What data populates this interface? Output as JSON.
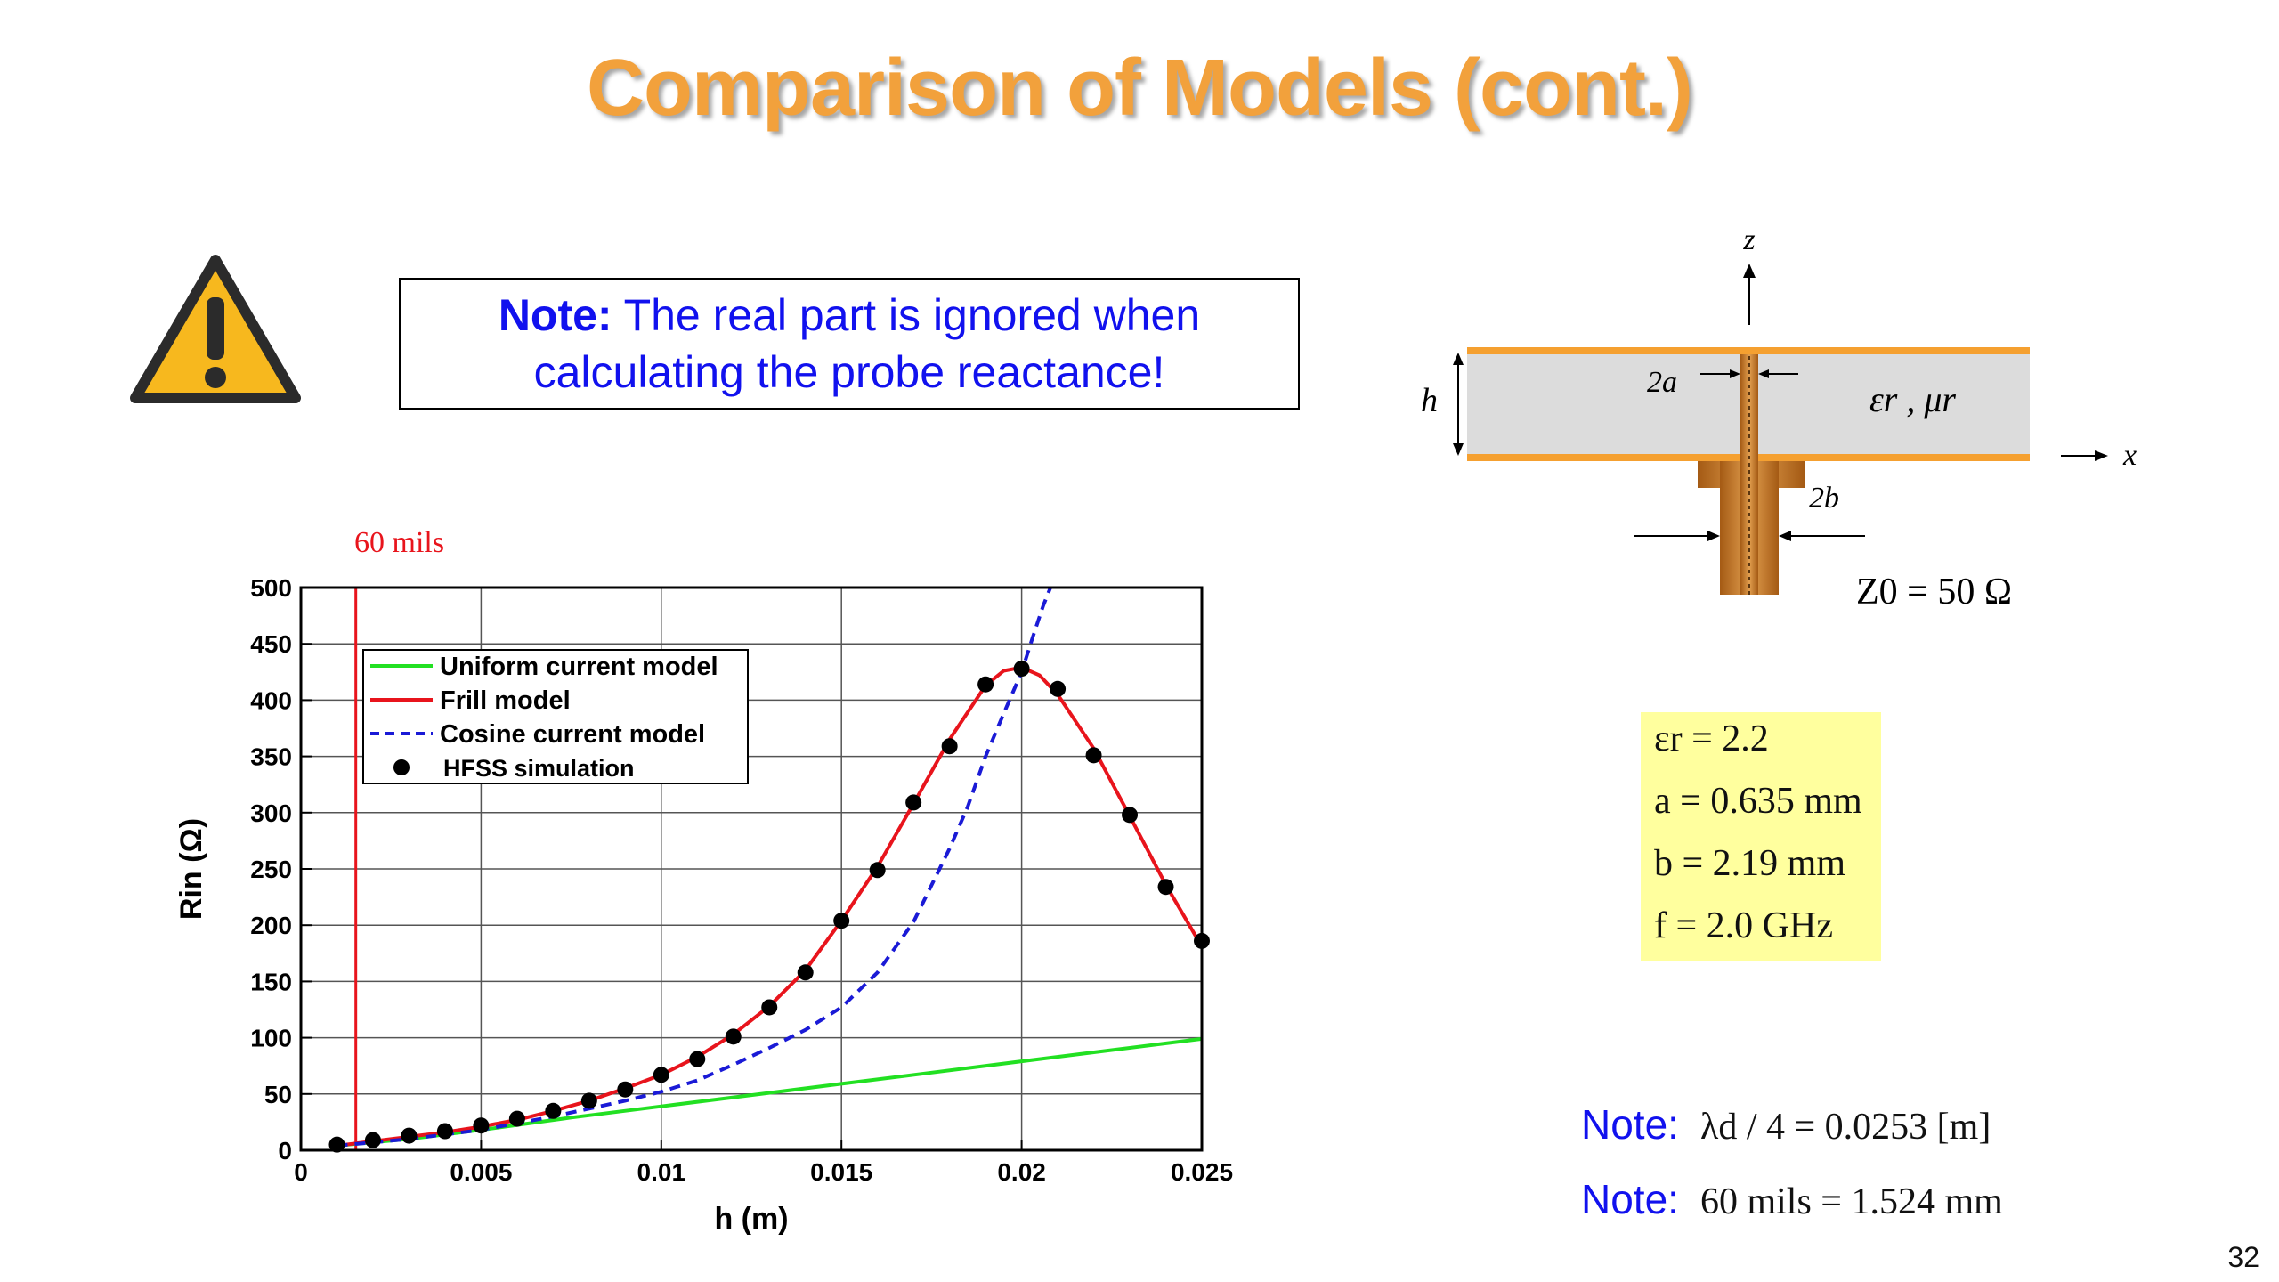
{
  "slide": {
    "title": "Comparison of Models (cont.)",
    "page_number": "32"
  },
  "note": {
    "bold": "Note:",
    "line1": " The real part is ignored when",
    "line2": "calculating the probe reactance!"
  },
  "warning_icon": "warning-triangle",
  "colors": {
    "title": "#f2a13c",
    "note_text": "#1111ee",
    "uniform": "#22e022",
    "frill": "#e8141c",
    "cosine": "#1a1ad6",
    "hfss": "#000000",
    "params_bg": "#ffff9e",
    "conductor": "#f5a030",
    "substrate": "#dcdcdc",
    "probe": "#c87a2a"
  },
  "diagram": {
    "z_label": "z",
    "x_label": "x",
    "h_label": "h",
    "a_label": "2a",
    "b_label": "2b",
    "material": "εr , μr",
    "z0": "Z0 = 50 Ω"
  },
  "params": [
    "εr = 2.2",
    "a = 0.635 mm",
    "b = 2.19  mm",
    "f = 2.0 GHz"
  ],
  "bottom_notes": [
    {
      "label": "Note:",
      "text": "λd / 4 = 0.0253 [m]"
    },
    {
      "label": "Note:",
      "text": "60 mils = 1.524 mm"
    }
  ],
  "chart_data": {
    "type": "line",
    "title": "",
    "xlabel": "h (m)",
    "ylabel": "Rin (Ω)",
    "xlim": [
      0,
      0.025
    ],
    "ylim": [
      0,
      500
    ],
    "x_ticks": [
      0,
      0.005,
      0.01,
      0.015,
      0.02,
      0.025
    ],
    "x_tick_labels": [
      "0",
      "0.005",
      "0.01",
      "0.015",
      "0.02",
      "0.025"
    ],
    "y_ticks": [
      0,
      50,
      100,
      150,
      200,
      250,
      300,
      350,
      400,
      450,
      500
    ],
    "y_tick_labels": [
      "0",
      "50",
      "100",
      "150",
      "200",
      "250",
      "300",
      "350",
      "400",
      "450",
      "500"
    ],
    "grid": true,
    "legend_position": "top-left",
    "marker_line": {
      "x": 0.001524,
      "label": "60 mils"
    },
    "series": [
      {
        "name": "Uniform current model",
        "style": "solid",
        "x": [
          0.001,
          0.003,
          0.005,
          0.0075,
          0.01,
          0.0125,
          0.015,
          0.0175,
          0.02,
          0.0225,
          0.025
        ],
        "y": [
          4,
          10,
          18,
          29,
          39,
          49,
          59,
          69,
          79,
          89,
          99
        ]
      },
      {
        "name": "Frill model",
        "style": "solid",
        "x": [
          0.001,
          0.002,
          0.003,
          0.004,
          0.005,
          0.006,
          0.007,
          0.008,
          0.009,
          0.01,
          0.011,
          0.012,
          0.013,
          0.014,
          0.015,
          0.016,
          0.017,
          0.018,
          0.019,
          0.0195,
          0.02,
          0.0205,
          0.021,
          0.022,
          0.023,
          0.024,
          0.025
        ],
        "y": [
          4,
          8,
          12,
          16,
          21,
          27,
          35,
          44,
          55,
          67,
          83,
          103,
          128,
          160,
          204,
          252,
          308,
          365,
          413,
          426,
          429,
          422,
          405,
          357,
          297,
          236,
          181
        ]
      },
      {
        "name": "Cosine current model",
        "style": "dashed",
        "x": [
          0.001,
          0.003,
          0.005,
          0.007,
          0.009,
          0.01,
          0.011,
          0.012,
          0.013,
          0.014,
          0.015,
          0.016,
          0.017,
          0.018,
          0.0185,
          0.019,
          0.0195,
          0.02,
          0.0203,
          0.0206,
          0.0208
        ],
        "y": [
          4,
          10,
          18,
          30,
          44,
          52,
          62,
          76,
          91,
          107,
          127,
          158,
          203,
          268,
          305,
          350,
          388,
          425,
          455,
          484,
          500
        ]
      },
      {
        "name": "HFSS simulation",
        "style": "markers",
        "x": [
          0.001,
          0.002,
          0.003,
          0.004,
          0.005,
          0.006,
          0.007,
          0.008,
          0.009,
          0.01,
          0.011,
          0.012,
          0.013,
          0.014,
          0.015,
          0.016,
          0.017,
          0.018,
          0.019,
          0.02,
          0.021,
          0.022,
          0.023,
          0.024,
          0.025
        ],
        "y": [
          5,
          9,
          13,
          17,
          22,
          28,
          35,
          44,
          54,
          67,
          81,
          101,
          127,
          158,
          204,
          249,
          309,
          359,
          414,
          428,
          410,
          351,
          298,
          234,
          186
        ]
      }
    ]
  }
}
